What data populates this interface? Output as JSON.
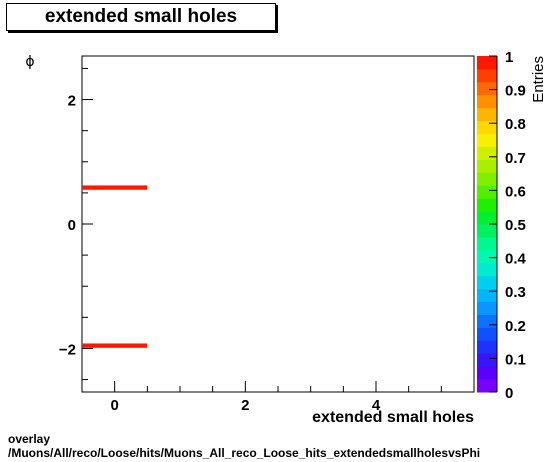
{
  "title": "extended small holes",
  "footer": {
    "line1": "overlay",
    "line2": "/Muons/All/reco/Loose/hits/Muons_All_reco_Loose_hits_extendedsmallholesvsPhi"
  },
  "chart_data": {
    "type": "heatmap",
    "title": "extended small holes",
    "xlabel": "extended small holes",
    "ylabel": "ϕ",
    "xlim": [
      -0.5,
      5.5
    ],
    "ylim": [
      -2.7,
      2.7
    ],
    "x_ticks": [
      0,
      2,
      4
    ],
    "y_ticks": [
      -2,
      0,
      2
    ],
    "y_tick_labels": [
      "−2",
      "0",
      "2"
    ],
    "cells": [
      {
        "x0": -0.5,
        "x1": 0.5,
        "y0": 0.55,
        "y1": 0.62,
        "value": 1
      },
      {
        "x0": -0.5,
        "x1": 0.5,
        "y0": -1.99,
        "y1": -1.92,
        "value": 1
      }
    ],
    "colorbar": {
      "label": "Entries",
      "range": [
        0,
        1
      ],
      "ticks": [
        0,
        0.1,
        0.2,
        0.3,
        0.4,
        0.5,
        0.6,
        0.7,
        0.8,
        0.9,
        1
      ],
      "tick_labels": [
        "0",
        "0.1",
        "0.2",
        "0.3",
        "0.4",
        "0.5",
        "0.6",
        "0.7",
        "0.8",
        "0.9",
        "1"
      ],
      "colors": [
        "#7a00ff",
        "#5a00ff",
        "#3a14ff",
        "#2030ff",
        "#1050ff",
        "#0a72ff",
        "#0a95ff",
        "#00b4ff",
        "#00d0f0",
        "#00ecd0",
        "#00f8b0",
        "#00f890",
        "#00f060",
        "#00f030",
        "#20f000",
        "#50f000",
        "#80f000",
        "#a8f000",
        "#d0f000",
        "#f8f000",
        "#ffd800",
        "#ffb400",
        "#ff9000",
        "#ff6a00",
        "#ff4000",
        "#ff1800"
      ]
    },
    "cell_color": "#ff1800"
  }
}
